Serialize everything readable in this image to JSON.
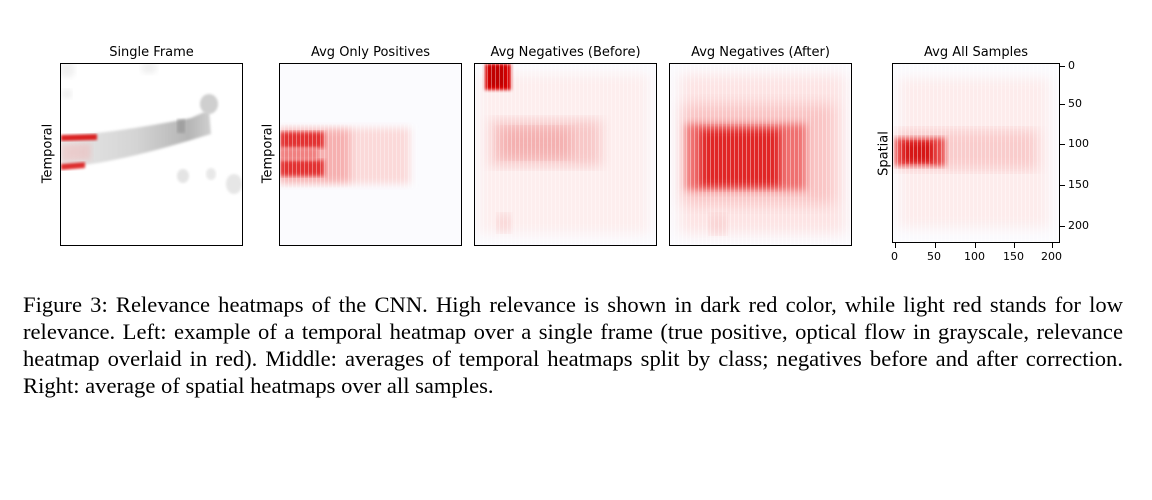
{
  "figure": {
    "panels": [
      {
        "title": "Single Frame",
        "ylabel": "Temporal"
      },
      {
        "title": "Avg Only Positives",
        "ylabel": "Temporal"
      },
      {
        "title": "Avg Negatives (Before)",
        "ylabel": ""
      },
      {
        "title": "Avg Negatives (After)",
        "ylabel": ""
      },
      {
        "title": "Avg All Samples",
        "ylabel": "Spatial"
      }
    ],
    "axis_ticks": {
      "y": [
        "0",
        "50",
        "100",
        "150",
        "200"
      ],
      "x": [
        "0",
        "50",
        "100",
        "150",
        "200"
      ]
    },
    "colors": {
      "high_relevance": "#d90000",
      "low_relevance": "#fde6e6",
      "background": "#fbfbfe",
      "optical_flow": "#c8c8c8"
    },
    "caption": "Figure 3: Relevance heatmaps of the CNN. High relevance is shown in dark red color, while light red stands for low relevance. Left: example of a temporal heatmap over a single frame (true positive, optical flow in grayscale, relevance heatmap overlaid in red). Middle: averages of temporal heatmaps split by class; negatives before and after correction. Right: average of spatial heatmaps over all samples."
  }
}
